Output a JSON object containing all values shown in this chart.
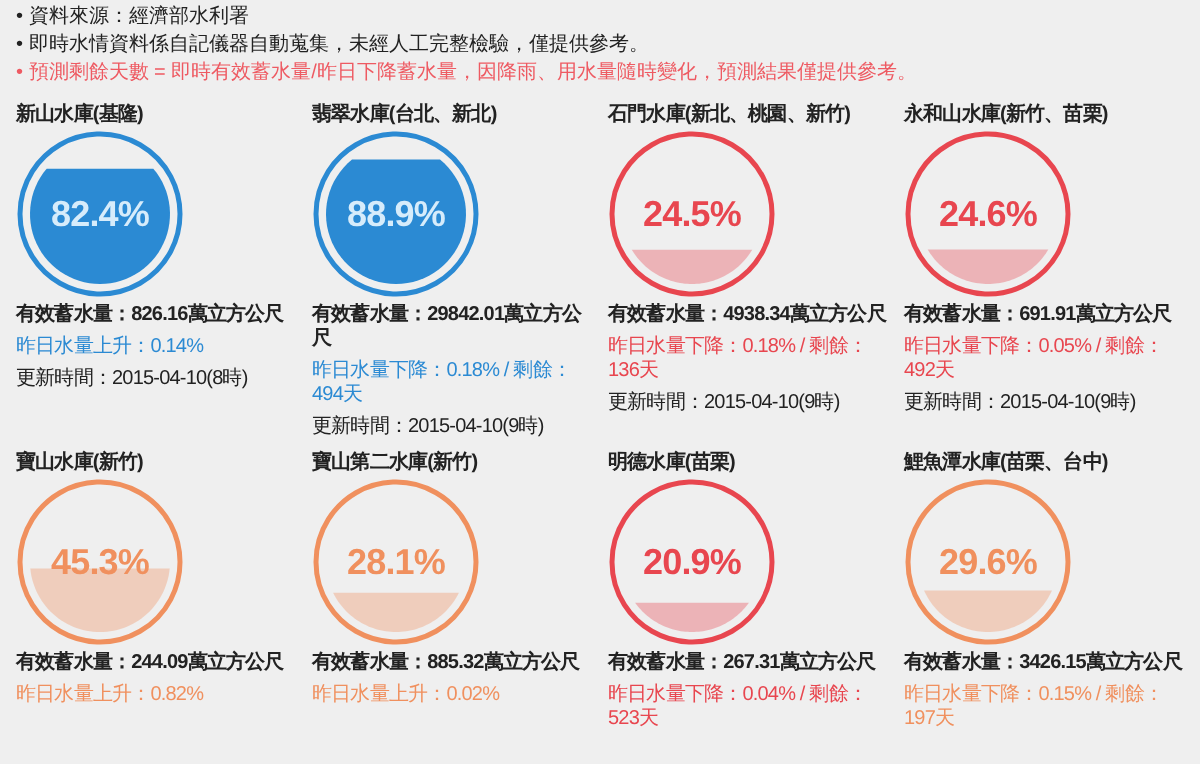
{
  "chart_data": [
    {
      "type": "other",
      "annotations": [
        "• 資料來源：經濟部水利署",
        "• 即時水情資料係自記儀器自動蒐集，未經人工完整檢驗，僅提供參考。",
        "• 預測剩餘天數 = 即時有效蓄水量/昨日下降蓄水量，因降雨、用水量隨時變化，預測結果僅提供參考。"
      ]
    },
    {
      "type": "other",
      "title": "新山水庫(基隆)",
      "values": [
        82.4
      ],
      "value_labels": [
        "82.4%"
      ],
      "color": "#2b8ad3",
      "annotations": [
        "有效蓄水量：826.16萬立方公尺",
        "昨日水量上升：0.14%",
        "更新時間：2015-04-10(8時)"
      ]
    },
    {
      "type": "other",
      "title": "翡翠水庫(台北、新北)",
      "values": [
        88.9
      ],
      "value_labels": [
        "88.9%"
      ],
      "color": "#2b8ad3",
      "annotations": [
        "有效蓄水量：29842.01萬立方公尺",
        "昨日水量下降：0.18% / 剩餘：494天",
        "更新時間：2015-04-10(9時)"
      ]
    },
    {
      "type": "other",
      "title": "石門水庫(新北、桃園、新竹)",
      "values": [
        24.5
      ],
      "value_labels": [
        "24.5%"
      ],
      "color": "#e8464f",
      "annotations": [
        "有效蓄水量：4938.34萬立方公尺",
        "昨日水量下降：0.18% / 剩餘：136天",
        "更新時間：2015-04-10(9時)"
      ]
    },
    {
      "type": "other",
      "title": "永和山水庫(新竹、苗栗)",
      "values": [
        24.6
      ],
      "value_labels": [
        "24.6%"
      ],
      "color": "#e8464f",
      "annotations": [
        "有效蓄水量：691.91萬立方公尺",
        "昨日水量下降：0.05% / 剩餘：492天",
        "更新時間：2015-04-10(9時)"
      ]
    },
    {
      "type": "other",
      "title": "寶山水庫(新竹)",
      "values": [
        45.3
      ],
      "value_labels": [
        "45.3%"
      ],
      "color": "#f0905e",
      "annotations": [
        "有效蓄水量：244.09萬立方公尺",
        "昨日水量上升：0.82%"
      ]
    },
    {
      "type": "other",
      "title": "寶山第二水庫(新竹)",
      "values": [
        28.1
      ],
      "value_labels": [
        "28.1%"
      ],
      "color": "#f0905e",
      "annotations": [
        "有效蓄水量：885.32萬立方公尺",
        "昨日水量上升：0.02%"
      ]
    },
    {
      "type": "other",
      "title": "明德水庫(苗栗)",
      "values": [
        20.9
      ],
      "value_labels": [
        "20.9%"
      ],
      "color": "#e8464f",
      "annotations": [
        "有效蓄水量：267.31萬立方公尺",
        "昨日水量下降：0.04% / 剩餘：523天"
      ]
    },
    {
      "type": "other",
      "title": "鯉魚潭水庫(苗栗、台中)",
      "values": [
        29.6
      ],
      "value_labels": [
        "29.6%"
      ],
      "color": "#f0905e",
      "annotations": [
        "有效蓄水量：3426.15萬立方公尺",
        "昨日水量下降：0.15% / 剩餘：197天"
      ]
    }
  ]
}
